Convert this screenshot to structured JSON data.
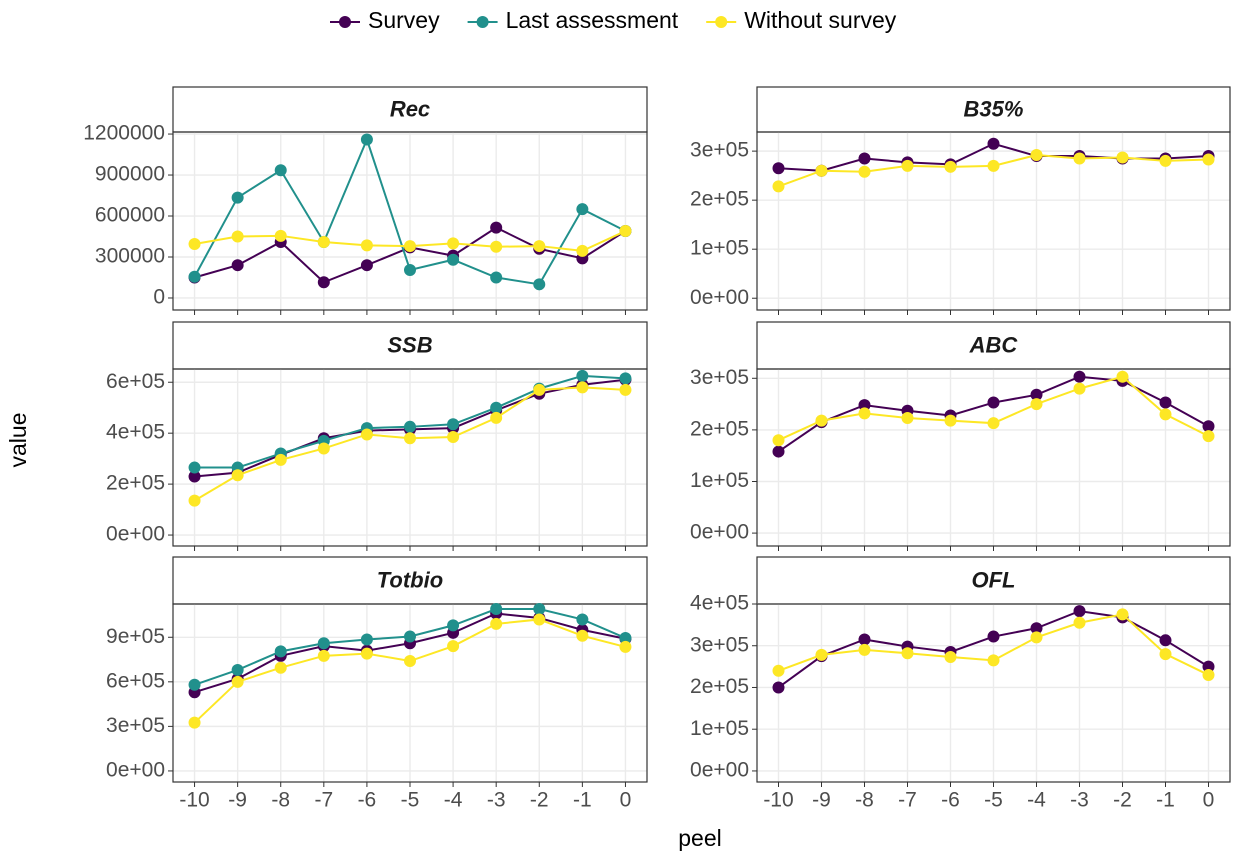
{
  "chart_data": [
    {
      "type": "line",
      "title": "Rec",
      "y_label": "value",
      "x_label": "peel",
      "x": [
        -10,
        -9,
        -8,
        -7,
        -6,
        -5,
        -4,
        -3,
        -2,
        -1,
        0
      ],
      "xlim": [
        -10.5,
        0.5
      ],
      "xticks": [
        -10,
        -9,
        -8,
        -7,
        -6,
        -5,
        -4,
        -3,
        -2,
        -1,
        0
      ],
      "ylim": [
        -88000,
        1215000
      ],
      "yticks": [
        0,
        300000,
        600000,
        900000,
        1200000
      ],
      "grid": true,
      "series": [
        {
          "name": "Survey",
          "color": "#440154",
          "values": [
            150000,
            240000,
            410000,
            115000,
            240000,
            370000,
            310000,
            515000,
            360000,
            290000,
            490000
          ]
        },
        {
          "name": "Last assessment",
          "color": "#21908C",
          "values": [
            155000,
            735000,
            935000,
            410000,
            1160000,
            205000,
            280000,
            150000,
            100000,
            650000,
            490000
          ]
        },
        {
          "name": "Without survey",
          "color": "#FDE725",
          "values": [
            395000,
            450000,
            455000,
            410000,
            385000,
            380000,
            400000,
            375000,
            380000,
            345000,
            490000
          ]
        }
      ]
    },
    {
      "type": "line",
      "title": "B35%",
      "x": [
        -10,
        -9,
        -8,
        -7,
        -6,
        -5,
        -4,
        -3,
        -2,
        -1,
        0
      ],
      "xlim": [
        -10.5,
        0.5
      ],
      "xticks": [
        -10,
        -9,
        -8,
        -7,
        -6,
        -5,
        -4,
        -3,
        -2,
        -1,
        0
      ],
      "ylim": [
        -24000,
        339000
      ],
      "yticks": [
        {
          "value": 0,
          "label": "0e+00"
        },
        {
          "value": 100000,
          "label": "1e+05"
        },
        {
          "value": 200000,
          "label": "2e+05"
        },
        {
          "value": 300000,
          "label": "3e+05"
        }
      ],
      "grid": true,
      "series": [
        {
          "name": "Survey",
          "color": "#440154",
          "values": [
            265000,
            260000,
            285000,
            277000,
            273000,
            315000,
            290000,
            290000,
            285000,
            285000,
            290000
          ]
        },
        {
          "name": "Without survey",
          "color": "#FDE725",
          "values": [
            228000,
            260000,
            258000,
            270000,
            268000,
            270000,
            292000,
            285000,
            287000,
            280000,
            283000
          ]
        }
      ]
    },
    {
      "type": "line",
      "title": "SSB",
      "x": [
        -10,
        -9,
        -8,
        -7,
        -6,
        -5,
        -4,
        -3,
        -2,
        -1,
        0
      ],
      "xlim": [
        -10.5,
        0.5
      ],
      "xticks": [
        -10,
        -9,
        -8,
        -7,
        -6,
        -5,
        -4,
        -3,
        -2,
        -1,
        0
      ],
      "ylim": [
        -43000,
        652000
      ],
      "yticks": [
        {
          "value": 0,
          "label": "0e+00"
        },
        {
          "value": 200000,
          "label": "2e+05"
        },
        {
          "value": 400000,
          "label": "4e+05"
        },
        {
          "value": 600000,
          "label": "6e+05"
        }
      ],
      "grid": true,
      "series": [
        {
          "name": "Survey",
          "color": "#440154",
          "values": [
            230000,
            245000,
            315000,
            380000,
            410000,
            415000,
            420000,
            490000,
            555000,
            590000,
            610000
          ]
        },
        {
          "name": "Last assessment",
          "color": "#21908C",
          "values": [
            265000,
            265000,
            320000,
            370000,
            420000,
            425000,
            435000,
            500000,
            575000,
            625000,
            615000
          ]
        },
        {
          "name": "Without survey",
          "color": "#FDE725",
          "values": [
            135000,
            235000,
            295000,
            340000,
            395000,
            380000,
            385000,
            460000,
            570000,
            580000,
            570000
          ]
        }
      ]
    },
    {
      "type": "line",
      "title": "ABC",
      "x": [
        -10,
        -9,
        -8,
        -7,
        -6,
        -5,
        -4,
        -3,
        -2,
        -1,
        0
      ],
      "xlim": [
        -10.5,
        0.5
      ],
      "xticks": [
        -10,
        -9,
        -8,
        -7,
        -6,
        -5,
        -4,
        -3,
        -2,
        -1,
        0
      ],
      "ylim": [
        -25000,
        318000
      ],
      "yticks": [
        {
          "value": 0,
          "label": "0e+00"
        },
        {
          "value": 100000,
          "label": "1e+05"
        },
        {
          "value": 200000,
          "label": "2e+05"
        },
        {
          "value": 300000,
          "label": "3e+05"
        }
      ],
      "grid": true,
      "series": [
        {
          "name": "Survey",
          "color": "#440154",
          "values": [
            158000,
            215000,
            248000,
            237000,
            228000,
            253000,
            268000,
            303000,
            295000,
            253000,
            207000
          ]
        },
        {
          "name": "Without survey",
          "color": "#FDE725",
          "values": [
            180000,
            218000,
            232000,
            223000,
            218000,
            213000,
            250000,
            280000,
            303000,
            230000,
            188000
          ]
        }
      ]
    },
    {
      "type": "line",
      "title": "Totbio",
      "x": [
        -10,
        -9,
        -8,
        -7,
        -6,
        -5,
        -4,
        -3,
        -2,
        -1,
        0
      ],
      "xlim": [
        -10.5,
        0.5
      ],
      "xticks": [
        -10,
        -9,
        -8,
        -7,
        -6,
        -5,
        -4,
        -3,
        -2,
        -1,
        0
      ],
      "ylim": [
        -74500,
        1124000
      ],
      "yticks": [
        {
          "value": 0,
          "label": "0e+00"
        },
        {
          "value": 300000,
          "label": "3e+05"
        },
        {
          "value": 600000,
          "label": "6e+05"
        },
        {
          "value": 900000,
          "label": "9e+05"
        }
      ],
      "grid": true,
      "series": [
        {
          "name": "Survey",
          "color": "#440154",
          "values": [
            530000,
            620000,
            775000,
            840000,
            810000,
            860000,
            930000,
            1060000,
            1030000,
            950000,
            890000
          ]
        },
        {
          "name": "Last assessment",
          "color": "#21908C",
          "values": [
            580000,
            680000,
            805000,
            860000,
            885000,
            905000,
            980000,
            1090000,
            1090000,
            1020000,
            895000
          ]
        },
        {
          "name": "Without survey",
          "color": "#FDE725",
          "values": [
            325000,
            600000,
            695000,
            775000,
            790000,
            740000,
            840000,
            990000,
            1020000,
            910000,
            835000
          ]
        }
      ]
    },
    {
      "type": "line",
      "title": "OFL",
      "x": [
        -10,
        -9,
        -8,
        -7,
        -6,
        -5,
        -4,
        -3,
        -2,
        -1,
        0
      ],
      "xlim": [
        -10.5,
        0.5
      ],
      "xticks": [
        -10,
        -9,
        -8,
        -7,
        -6,
        -5,
        -4,
        -3,
        -2,
        -1,
        0
      ],
      "ylim": [
        -26500,
        400000
      ],
      "yticks": [
        {
          "value": 0,
          "label": "0e+00"
        },
        {
          "value": 100000,
          "label": "1e+05"
        },
        {
          "value": 200000,
          "label": "2e+05"
        },
        {
          "value": 300000,
          "label": "3e+05"
        },
        {
          "value": 400000,
          "label": "4e+05"
        }
      ],
      "grid": true,
      "series": [
        {
          "name": "Survey",
          "color": "#440154",
          "values": [
            200000,
            275000,
            315000,
            298000,
            285000,
            322000,
            342000,
            383000,
            368000,
            313000,
            250000
          ]
        },
        {
          "name": "Without survey",
          "color": "#FDE725",
          "values": [
            240000,
            278000,
            290000,
            282000,
            273000,
            265000,
            320000,
            355000,
            375000,
            280000,
            230000
          ]
        }
      ]
    }
  ]
}
